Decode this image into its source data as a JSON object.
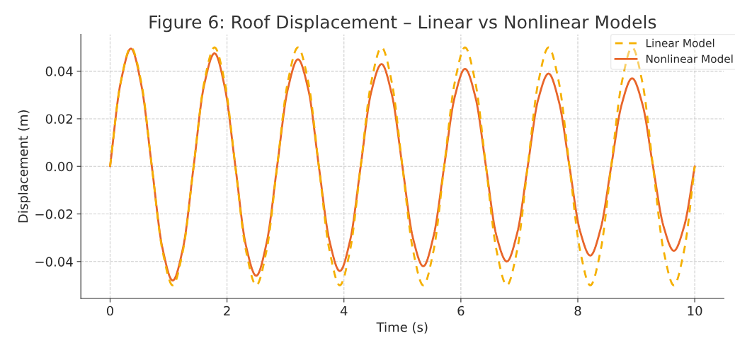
{
  "chart_data": {
    "type": "line",
    "title": "Figure 6: Roof Displacement – Linear vs Nonlinear Models",
    "xlabel": "Time (s)",
    "ylabel": "Displacement (m)",
    "x": [
      0,
      0.179,
      0.357,
      0.536,
      0.714,
      0.893,
      1.071,
      1.25,
      1.429,
      1.607,
      1.786,
      1.964,
      2.143,
      2.321,
      2.5,
      2.679,
      2.857,
      3.036,
      3.214,
      3.393,
      3.571,
      3.75,
      3.929,
      4.107,
      4.286,
      4.464,
      4.643,
      4.821,
      5,
      5.179,
      5.357,
      5.536,
      5.714,
      5.893,
      6.071,
      6.25,
      6.429,
      6.607,
      6.786,
      6.964,
      7.143,
      7.321,
      7.5,
      7.679,
      7.857,
      8.036,
      8.214,
      8.393,
      8.571,
      8.75,
      8.929,
      9.107,
      9.286,
      9.464,
      9.643,
      9.821,
      10
    ],
    "series": [
      {
        "name": "Linear Model",
        "color": "#f5b000",
        "line_style": "dashed",
        "values": [
          0,
          0.035,
          0.05,
          0.035,
          0,
          -0.035,
          -0.05,
          -0.035,
          0,
          0.035,
          0.05,
          0.035,
          0,
          -0.035,
          -0.05,
          -0.035,
          0,
          0.035,
          0.05,
          0.035,
          0,
          -0.035,
          -0.05,
          -0.035,
          0,
          0.035,
          0.05,
          0.035,
          0,
          -0.035,
          -0.05,
          -0.035,
          0,
          0.035,
          0.05,
          0.035,
          0,
          -0.035,
          -0.05,
          -0.035,
          0,
          0.035,
          0.05,
          0.035,
          0,
          -0.035,
          -0.05,
          -0.035,
          0,
          0.035,
          0.05,
          0.035,
          0,
          -0.035,
          -0.05,
          -0.035,
          0
        ]
      },
      {
        "name": "Nonlinear Model",
        "color": "#e8652a",
        "line_style": "solid",
        "values": [
          0,
          0.035,
          0.0495,
          0.034,
          0,
          -0.034,
          -0.048,
          -0.034,
          0,
          0.034,
          0.0475,
          0.033,
          0,
          -0.033,
          -0.046,
          -0.032,
          0,
          0.032,
          0.045,
          0.032,
          0,
          -0.031,
          -0.044,
          -0.031,
          0,
          0.031,
          0.043,
          0.03,
          0,
          -0.03,
          -0.042,
          -0.029,
          0,
          0.029,
          0.041,
          0.029,
          0,
          -0.029,
          -0.04,
          -0.028,
          0,
          0.028,
          0.039,
          0.027,
          0,
          -0.027,
          -0.0375,
          -0.026,
          0,
          0.026,
          0.037,
          0.026,
          0,
          -0.025,
          -0.0355,
          -0.025,
          0
        ]
      }
    ],
    "xlim": [
      -0.5,
      10.5
    ],
    "ylim": [
      -0.0555,
      0.0555
    ],
    "xticks": [
      0,
      2,
      4,
      6,
      8,
      10
    ],
    "yticks": [
      {
        "value": -0.04,
        "label": "−0.04"
      },
      {
        "value": -0.02,
        "label": "−0.02"
      },
      {
        "value": 0,
        "label": "0.00"
      },
      {
        "value": 0.02,
        "label": "0.02"
      },
      {
        "value": 0.04,
        "label": "0.04"
      }
    ],
    "grid": true,
    "legend": "top right",
    "marker": "none"
  }
}
